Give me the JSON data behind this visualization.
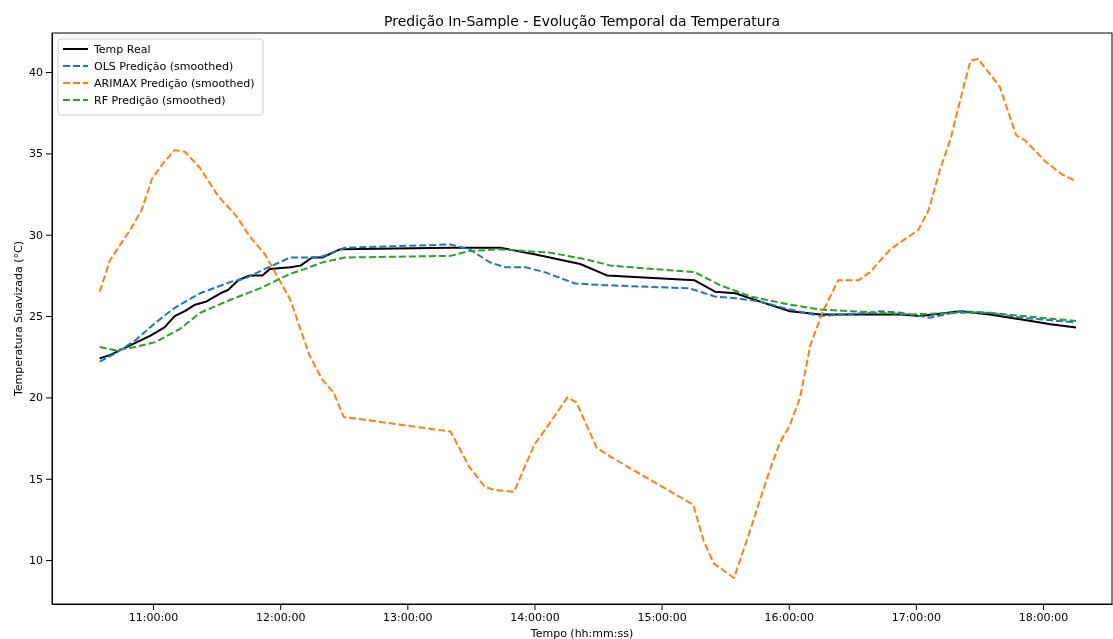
{
  "chart_data": {
    "type": "line",
    "title": "Predição In-Sample - Evolução Temporal da Temperatura",
    "xlabel": "Tempo (hh:mm:ss)",
    "ylabel": "Temperatura Suavizada (°C)",
    "xlim": [
      10.205,
      18.543
    ],
    "ylim": [
      7.3,
      42.4
    ],
    "xticks": [
      {
        "value": 11,
        "label": "11:00:00"
      },
      {
        "value": 12,
        "label": "12:00:00"
      },
      {
        "value": 13,
        "label": "13:00:00"
      },
      {
        "value": 14,
        "label": "14:00:00"
      },
      {
        "value": 15,
        "label": "15:00:00"
      },
      {
        "value": 16,
        "label": "16:00:00"
      },
      {
        "value": 17,
        "label": "17:00:00"
      },
      {
        "value": 18,
        "label": "18:00:00"
      }
    ],
    "yticks": [
      10,
      15,
      20,
      25,
      30,
      35,
      40
    ],
    "grid": false,
    "legend": "top left",
    "marker": "none",
    "series": [
      {
        "name": "Temp Real",
        "color": "#000000",
        "line_style": "solid",
        "x": [
          10.58,
          10.66,
          10.82,
          10.98,
          11.09,
          11.17,
          11.25,
          11.33,
          11.42,
          11.53,
          11.59,
          11.67,
          11.76,
          11.86,
          11.92,
          12.08,
          12.16,
          12.25,
          12.33,
          12.47,
          13.34,
          13.73,
          14.0,
          14.36,
          14.57,
          15.26,
          15.42,
          15.58,
          15.77,
          16.01,
          16.25,
          16.88,
          17.03,
          17.35,
          17.58,
          17.82,
          18.06,
          18.26
        ],
        "values": [
          22.4,
          22.6,
          23.2,
          23.8,
          24.3,
          25.0,
          25.3,
          25.7,
          25.9,
          26.4,
          26.6,
          27.2,
          27.5,
          27.5,
          27.9,
          28.0,
          28.1,
          28.6,
          28.6,
          29.1,
          29.2,
          29.2,
          28.8,
          28.2,
          27.5,
          27.2,
          26.5,
          26.4,
          25.9,
          25.3,
          25.1,
          25.1,
          25.0,
          25.3,
          25.1,
          24.8,
          24.5,
          24.3
        ]
      },
      {
        "name": "OLS Predição (smoothed)",
        "color": "#1f77b4",
        "line_style": "dashed",
        "x": [
          10.58,
          10.7,
          10.86,
          11.02,
          11.17,
          11.37,
          11.61,
          11.72,
          11.88,
          12.08,
          12.23,
          12.31,
          12.51,
          13.34,
          13.49,
          13.65,
          13.77,
          13.93,
          14.08,
          14.32,
          14.56,
          15.22,
          15.42,
          15.58,
          15.77,
          16.01,
          16.25,
          16.64,
          16.72,
          16.88,
          17.11,
          17.35,
          17.58,
          17.82,
          18.13,
          18.26
        ],
        "values": [
          22.2,
          22.7,
          23.5,
          24.6,
          25.5,
          26.4,
          27.1,
          27.3,
          27.9,
          28.6,
          28.6,
          28.6,
          29.2,
          29.4,
          29.1,
          28.3,
          28.0,
          28.0,
          27.7,
          27.0,
          26.9,
          26.7,
          26.2,
          26.1,
          25.9,
          25.4,
          25.0,
          25.2,
          25.3,
          25.2,
          24.9,
          25.3,
          25.2,
          24.9,
          24.7,
          24.6
        ]
      },
      {
        "name": "ARIMAX Predição (smoothed)",
        "color": "#ff7f0e",
        "line_style": "dashed",
        "x": [
          10.58,
          10.66,
          10.82,
          10.91,
          10.99,
          11.08,
          11.17,
          11.25,
          11.37,
          11.51,
          11.66,
          11.76,
          11.88,
          12.08,
          12.23,
          12.33,
          12.42,
          12.5,
          13.34,
          13.49,
          13.61,
          13.69,
          13.84,
          14.0,
          14.11,
          14.26,
          14.33,
          14.49,
          14.61,
          15.25,
          15.33,
          15.41,
          15.57,
          15.7,
          15.85,
          15.93,
          16.01,
          16.09,
          16.17,
          16.27,
          16.39,
          16.55,
          16.64,
          16.8,
          17.02,
          17.1,
          17.19,
          17.27,
          17.35,
          17.43,
          17.49,
          17.66,
          17.79,
          17.86,
          18.02,
          18.15,
          18.26
        ],
        "values": [
          26.5,
          28.4,
          30.3,
          31.5,
          33.4,
          34.4,
          35.2,
          35.1,
          34.1,
          32.4,
          31.1,
          29.9,
          28.8,
          26.0,
          22.6,
          21.1,
          20.3,
          18.8,
          17.9,
          15.7,
          14.5,
          14.3,
          14.2,
          17.1,
          18.3,
          20.0,
          19.7,
          16.9,
          16.3,
          13.4,
          11.2,
          9.8,
          8.9,
          11.9,
          15.5,
          17.2,
          18.3,
          20.0,
          23.2,
          25.3,
          27.2,
          27.2,
          27.7,
          29.1,
          30.3,
          31.5,
          34.0,
          35.8,
          38.3,
          40.7,
          40.8,
          39.1,
          36.1,
          35.8,
          34.5,
          33.7,
          33.3
        ]
      },
      {
        "name": "RF Predição (smoothed)",
        "color": "#2ca02c",
        "line_style": "dashed",
        "x": [
          10.58,
          10.7,
          10.86,
          11.02,
          11.21,
          11.37,
          11.61,
          11.84,
          12.08,
          12.2,
          12.33,
          12.51,
          13.34,
          13.49,
          13.73,
          14.12,
          14.4,
          14.6,
          15.26,
          15.46,
          15.7,
          16.01,
          16.25,
          16.72,
          16.95,
          17.35,
          17.58,
          17.98,
          18.26
        ],
        "values": [
          23.1,
          22.9,
          23.1,
          23.4,
          24.2,
          25.2,
          26.0,
          26.7,
          27.6,
          27.9,
          28.3,
          28.6,
          28.7,
          29.0,
          29.1,
          28.9,
          28.5,
          28.1,
          27.7,
          26.9,
          26.2,
          25.7,
          25.4,
          25.2,
          25.1,
          25.2,
          25.2,
          24.9,
          24.7
        ]
      }
    ]
  }
}
